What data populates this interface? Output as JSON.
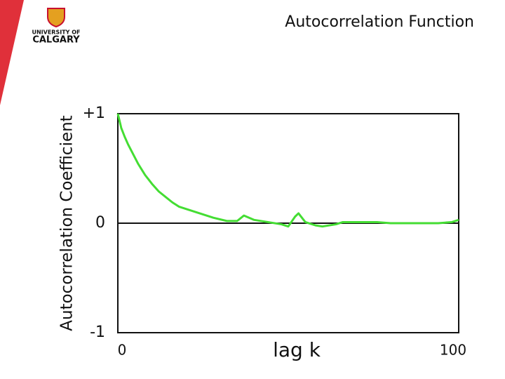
{
  "logo": {
    "line1": "UNIVERSITY OF",
    "line2": "CALGARY"
  },
  "chart_data": {
    "type": "line",
    "title": "Autocorrelation Function",
    "y_label": "Autocorrelation Coefficient",
    "x_label": "lag k",
    "xlim": [
      0,
      100
    ],
    "xticks": [
      0,
      100
    ],
    "ylim": [
      -1,
      1
    ],
    "yticks": [
      {
        "value": -1,
        "label": "-1"
      },
      0,
      {
        "value": 1,
        "label": "+1"
      }
    ],
    "series": [
      {
        "color": "#44dd33",
        "x": [
          0,
          1,
          2,
          3,
          4,
          5,
          6,
          7,
          8,
          9,
          10,
          12,
          14,
          16,
          18,
          20,
          24,
          28,
          32,
          35,
          37,
          40,
          44,
          48,
          50,
          52,
          53,
          55,
          58,
          60,
          64,
          66,
          70,
          76,
          80,
          90,
          94,
          98,
          100
        ],
        "values": [
          1.0,
          0.87,
          0.79,
          0.72,
          0.66,
          0.6,
          0.54,
          0.49,
          0.44,
          0.4,
          0.36,
          0.29,
          0.24,
          0.19,
          0.15,
          0.13,
          0.09,
          0.05,
          0.02,
          0.02,
          0.07,
          0.03,
          0.01,
          -0.01,
          -0.03,
          0.06,
          0.09,
          0.01,
          -0.02,
          -0.03,
          -0.01,
          0.01,
          0.01,
          0.01,
          0,
          0,
          0,
          0.01,
          0.03
        ]
      }
    ]
  }
}
